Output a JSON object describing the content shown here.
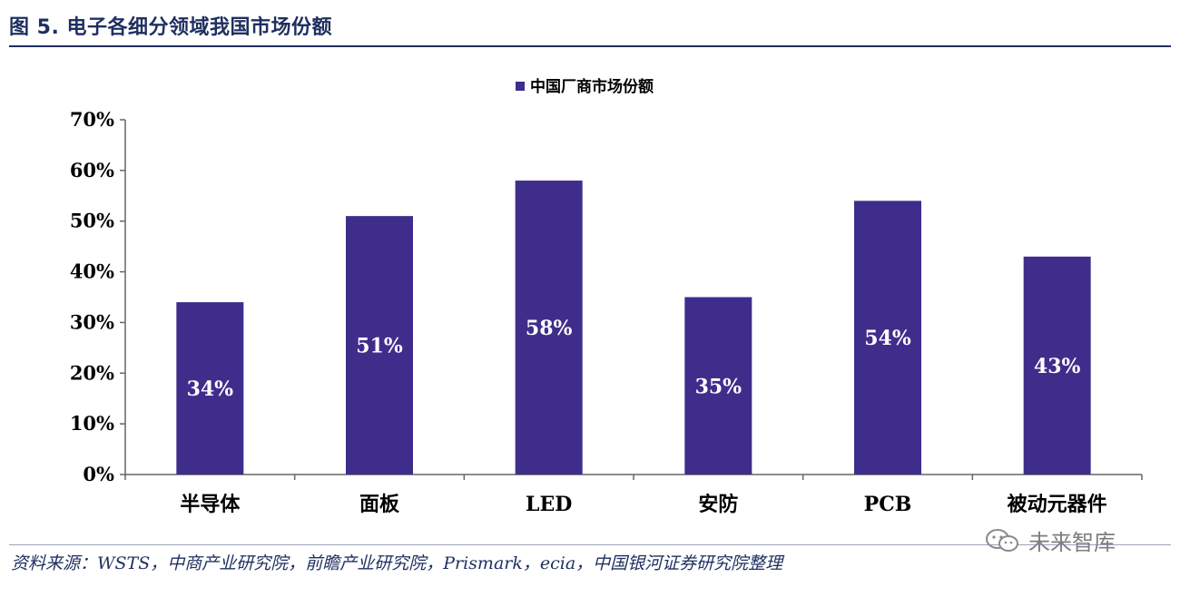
{
  "figure": {
    "title": "图 5. 电子各细分领域我国市场份额",
    "source": "资料来源：WSTS，中商产业研究院，前瞻产业研究院，Prismark，ecia，中国银河证券研究院整理",
    "watermark_text": "未来智库",
    "watermark_icon": "wechat-icon"
  },
  "chart_data": {
    "type": "bar",
    "categories": [
      "半导体",
      "面板",
      "LED",
      "安防",
      "PCB",
      "被动元器件"
    ],
    "series": [
      {
        "name": "中国厂商市场份额",
        "values": [
          34,
          51,
          58,
          35,
          54,
          43
        ],
        "data_labels": [
          "34%",
          "51%",
          "58%",
          "35%",
          "54%",
          "43%"
        ]
      }
    ],
    "ylim": [
      0,
      70
    ],
    "yticks": [
      0,
      10,
      20,
      30,
      40,
      50,
      60,
      70
    ],
    "ytick_labels": [
      "0%",
      "10%",
      "20%",
      "30%",
      "40%",
      "50%",
      "60%",
      "70%"
    ],
    "legend_position": "top-center",
    "grid": false,
    "bar_color": "#3f2d8c",
    "label_color": "#ffffff",
    "axis_text_color": "#000000"
  }
}
